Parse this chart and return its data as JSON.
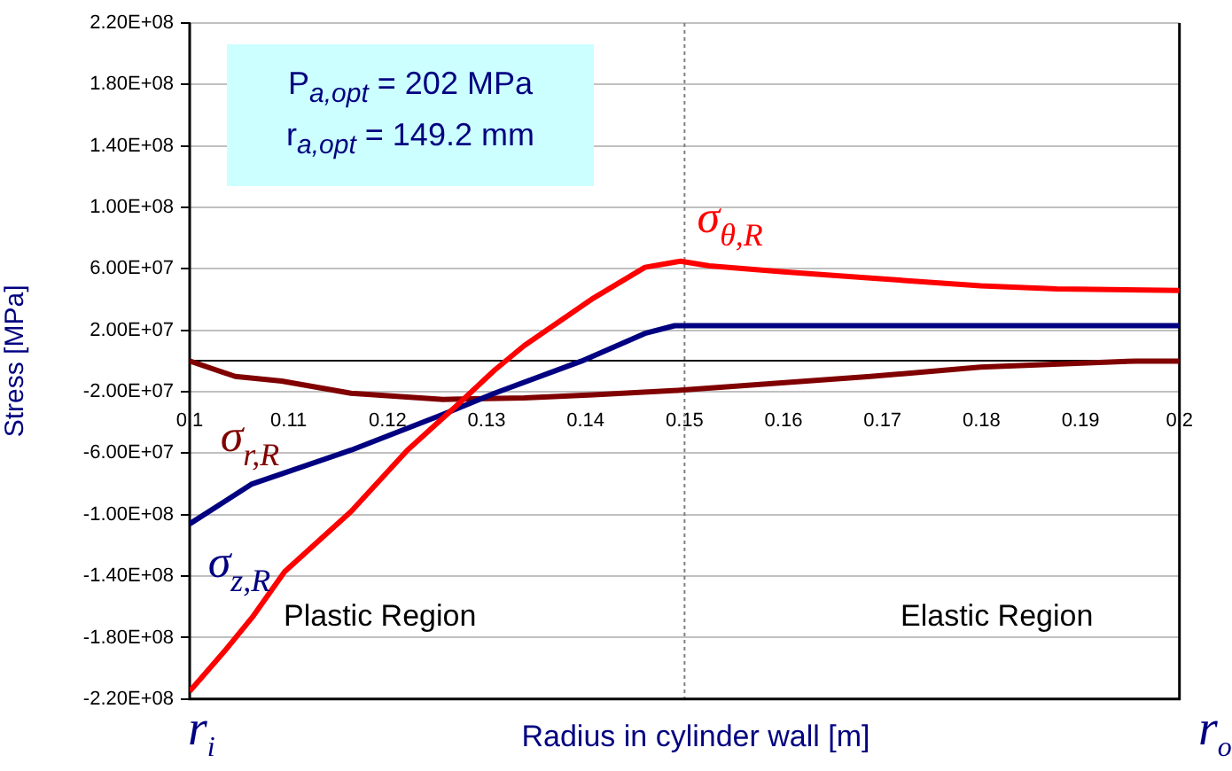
{
  "chart_data": {
    "type": "line",
    "xlabel": "Radius in cylinder wall [m]",
    "ylabel": "Stress [MPa]",
    "xlim": [
      0.1,
      0.2
    ],
    "xticks": [
      0.1,
      0.11,
      0.12,
      0.13,
      0.14,
      0.15,
      0.16,
      0.17,
      0.18,
      0.19,
      0.2
    ],
    "ylim": [
      -220000000,
      220000000
    ],
    "yticks": [
      {
        "value": -220000000,
        "label": "-2.20E+08"
      },
      {
        "value": -180000000,
        "label": "-1.80E+08"
      },
      {
        "value": -140000000,
        "label": "-1.40E+08"
      },
      {
        "value": -100000000,
        "label": "-1.00E+08"
      },
      {
        "value": -60000000,
        "label": "-6.00E+07"
      },
      {
        "value": -20000000,
        "label": "-2.00E+07"
      },
      {
        "value": 20000000,
        "label": "2.00E+07"
      },
      {
        "value": 60000000,
        "label": "6.00E+07"
      },
      {
        "value": 100000000,
        "label": "1.00E+08"
      },
      {
        "value": 140000000,
        "label": "1.40E+08"
      },
      {
        "value": 180000000,
        "label": "1.80E+08"
      },
      {
        "value": 220000000,
        "label": "2.20E+08"
      }
    ],
    "grid": "y",
    "legend": false,
    "marker": "none",
    "line_style": "solid",
    "series": [
      {
        "name": "σ$_{θ,R}$",
        "color": "#ff0000",
        "x": [
          0.1,
          0.1035,
          0.1063,
          0.1096,
          0.1163,
          0.122,
          0.1268,
          0.1308,
          0.1338,
          0.1408,
          0.146,
          0.1496,
          0.1525,
          0.16,
          0.1688,
          0.1799,
          0.1876,
          0.2
        ],
        "values": [
          -215000000,
          -189000000,
          -167000000,
          -137000000,
          -98000000,
          -58000000,
          -30000000,
          -6000000,
          10000000,
          41000000,
          61000000,
          65000000,
          62000000,
          58000000,
          54000000,
          49000000,
          47000000,
          46000000
        ]
      },
      {
        "name": "σ$_{z,R}$",
        "color": "#000080",
        "x": [
          0.1,
          0.1063,
          0.1163,
          0.1251,
          0.1308,
          0.1396,
          0.146,
          0.149,
          0.2
        ],
        "values": [
          -106000000,
          -80000000,
          -58000000,
          -36000000,
          -21000000,
          0,
          18000000,
          23000000,
          23000000
        ]
      },
      {
        "name": "σ$_{r,R}$",
        "color": "#800000",
        "x": [
          0.1,
          0.1046,
          0.1093,
          0.1163,
          0.1256,
          0.1338,
          0.1408,
          0.1496,
          0.1688,
          0.1799,
          0.1956,
          0.2
        ],
        "values": [
          0,
          -10000000,
          -13000000,
          -21000000,
          -25000000,
          -24000000,
          -22000000,
          -19000000,
          -10000000,
          -4000000,
          0,
          0
        ]
      }
    ],
    "ref_lines": [
      {
        "axis": "x",
        "value": 0.15,
        "color": "#808080",
        "line_style": "dotted"
      }
    ],
    "annotations": [
      "P$_{a,opt}$ = 202 MPa",
      "r$_{a,opt}$ = 149.2 mm",
      "Plastic Region",
      "Elastic Region",
      "r$_{i}$",
      "r$_{o}$"
    ]
  }
}
